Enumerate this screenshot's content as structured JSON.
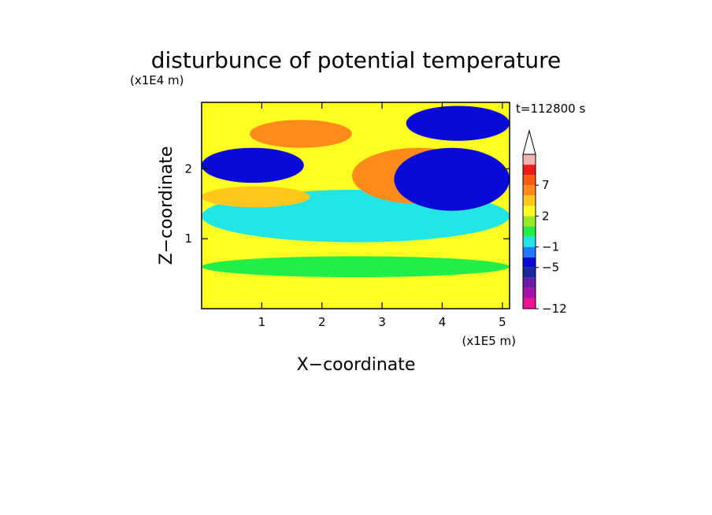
{
  "chart_data": {
    "type": "heatmap",
    "title": "disturbunce of potential temperature",
    "xlabel": "X−coordinate",
    "ylabel": "Z−coordinate",
    "x_scale_label": "(x1E5 m)",
    "y_scale_label": "(x1E4 m)",
    "time_label": "t=112800 s",
    "xlim": [
      0,
      5.12
    ],
    "ylim": [
      0,
      2.95
    ],
    "x_ticks": [
      "1",
      "2",
      "3",
      "4",
      "5"
    ],
    "x_tick_values": [
      1,
      2,
      3,
      4,
      5
    ],
    "y_ticks": [
      "1",
      "2"
    ],
    "y_tick_values": [
      1,
      2
    ],
    "colorbar": {
      "labels": [
        "7",
        "2",
        "−1",
        "−5",
        "−12"
      ],
      "label_levels": [
        7,
        2,
        -1,
        -5,
        -12
      ],
      "levels": [
        -12,
        -10,
        -8,
        -6,
        -5,
        -3,
        -1,
        0,
        1,
        2,
        3,
        5,
        7,
        9,
        11
      ],
      "colors": [
        "#ee1493",
        "#aa10aa",
        "#6a1aa4",
        "#1a2a9e",
        "#0a0ad8",
        "#1e7aff",
        "#22e6e6",
        "#22ee4a",
        "#9be826",
        "#ffff22",
        "#ffc81a",
        "#ff8c1a",
        "#ff5a10",
        "#ee1b1b",
        "#f5b3b3"
      ],
      "extend": "max"
    },
    "field_regions": [
      {
        "level": 2.5,
        "x": [
          0,
          5.12
        ],
        "z": [
          0,
          0.9
        ]
      },
      {
        "level": 0.5,
        "x": [
          0,
          5.12
        ],
        "z": [
          0.45,
          0.75
        ]
      },
      {
        "level": -1,
        "x": [
          0,
          5.12
        ],
        "z": [
          0.95,
          1.7
        ]
      },
      {
        "level": 5,
        "x": [
          2.5,
          4.7
        ],
        "z": [
          1.5,
          2.3
        ]
      },
      {
        "level": 10,
        "x": [
          3.45,
          4.2
        ],
        "z": [
          1.92,
          2.1
        ]
      },
      {
        "level": 6,
        "x": [
          0.8,
          2.5
        ],
        "z": [
          2.3,
          2.7
        ]
      },
      {
        "level": -4,
        "x": [
          0,
          1.7
        ],
        "z": [
          1.8,
          2.3
        ]
      },
      {
        "level": -4,
        "x": [
          3.2,
          5.12
        ],
        "z": [
          1.4,
          2.3
        ]
      },
      {
        "level": -4,
        "x": [
          3.4,
          5.12
        ],
        "z": [
          2.4,
          2.9
        ]
      },
      {
        "level": 4,
        "x": [
          0,
          1.8
        ],
        "z": [
          1.45,
          1.75
        ]
      }
    ]
  }
}
